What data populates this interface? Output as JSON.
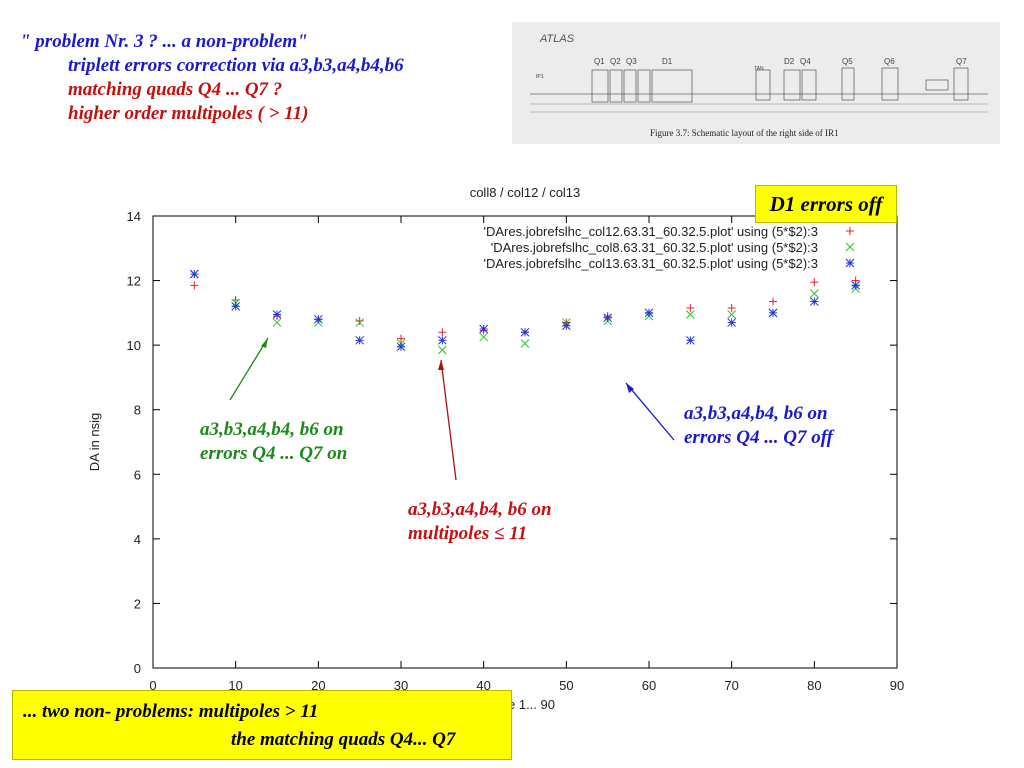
{
  "header": {
    "line1": "\" problem Nr. 3 ? ... a non-problem\"",
    "line2": "triplett errors correction via a3,b3,a4,b4,b6",
    "line3": "matching quads Q4 ... Q7 ?",
    "line4": "higher order multipoles ( > 11)"
  },
  "atlas_figure": {
    "label": "ATLAS",
    "caption": "Figure 3.7: Schematic layout of the right side of IR1",
    "elements": [
      "IP1",
      "Q1",
      "Q2",
      "Q3",
      "D1",
      "TAN",
      "D2",
      "Q4",
      "Q5",
      "Q6",
      "Q7"
    ]
  },
  "d1_box": "D1 errors off",
  "annotations": {
    "green_line1": "a3,b3,a4,b4, b6 on",
    "green_line2": "errors Q4 ... Q7 on",
    "red_line1": "a3,b3,a4,b4, b6 on",
    "red_line2": "multipoles ≤ 11",
    "blue_line1": "a3,b3,a4,b4, b6 on",
    "blue_line2": "errors Q4 ... Q7 off"
  },
  "footer": {
    "line1": "... two non- problems: multipoles  > 11",
    "line2": "the matching quads Q4... Q7"
  },
  "colors": {
    "series1": "#e8202a",
    "series2": "#22cc22",
    "series3": "#2233dd",
    "yellow": "#ffff00"
  },
  "chart_data": {
    "type": "scatter",
    "title": "coll8 / col12 / col13",
    "xlabel": "e 1... 90",
    "ylabel": "DA in nsig",
    "xlim": [
      0,
      90
    ],
    "ylim": [
      0,
      14
    ],
    "xticks": [
      0,
      10,
      20,
      30,
      40,
      50,
      60,
      70,
      80,
      90
    ],
    "yticks": [
      0,
      2,
      4,
      6,
      8,
      10,
      12,
      14
    ],
    "legend_position": "top-right",
    "x": [
      5,
      10,
      15,
      20,
      25,
      30,
      35,
      40,
      45,
      50,
      55,
      60,
      65,
      70,
      75,
      80,
      85
    ],
    "series": [
      {
        "name": "'DAres.jobrefslhc_col12.63.31_60.32.5.plot' using (5*$2):3",
        "marker": "+",
        "values": [
          11.85,
          11.4,
          10.9,
          10.8,
          10.75,
          10.2,
          10.4,
          10.45,
          10.4,
          10.7,
          10.9,
          11.0,
          11.15,
          11.15,
          11.35,
          11.95,
          12.0
        ]
      },
      {
        "name": "'DAres.jobrefslhc_col8.63.31_60.32.5.plot' using (5*$2):3",
        "marker": "x",
        "values": [
          12.2,
          11.3,
          10.7,
          10.7,
          10.7,
          10.05,
          9.85,
          10.25,
          10.05,
          10.7,
          10.75,
          10.9,
          10.95,
          10.95,
          11.0,
          11.6,
          11.75
        ]
      },
      {
        "name": "'DAres.jobrefslhc_col13.63.31_60.32.5.plot' using (5*$2):3",
        "marker": "*",
        "values": [
          12.2,
          11.2,
          10.95,
          10.8,
          10.15,
          9.95,
          10.15,
          10.5,
          10.4,
          10.6,
          10.85,
          11.0,
          10.15,
          10.7,
          11.0,
          11.35,
          11.85
        ]
      }
    ]
  }
}
